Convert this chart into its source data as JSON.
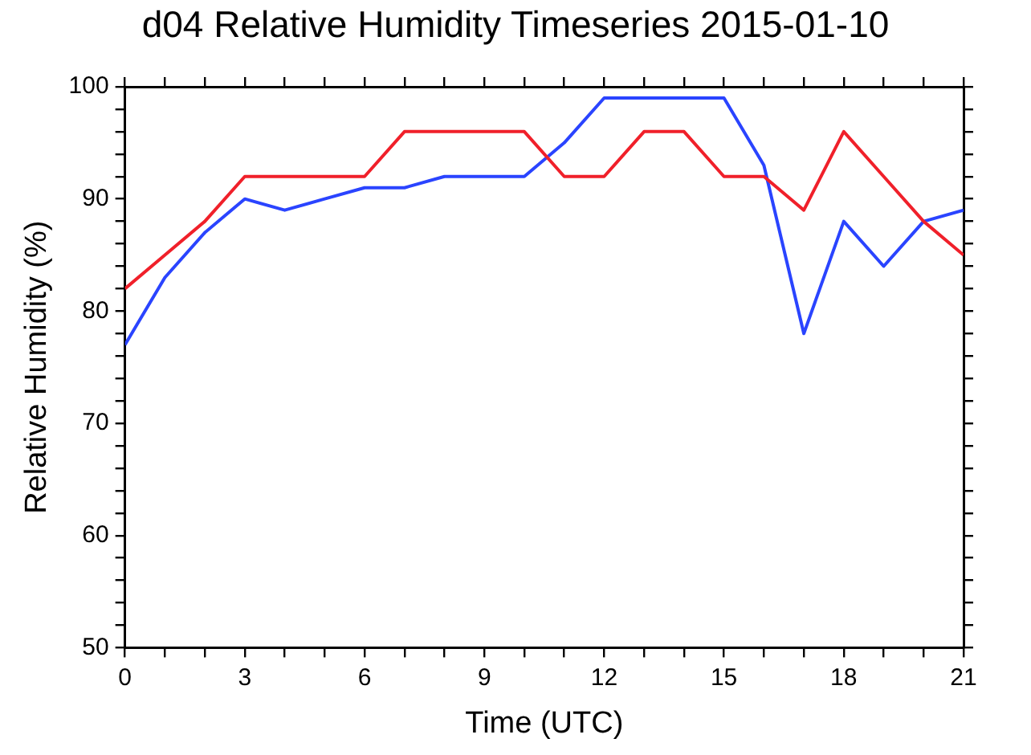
{
  "chart_data": {
    "type": "line",
    "title": "d04 Relative Humidity Timeseries 2015-01-10",
    "xlabel": "Time (UTC)",
    "ylabel": "Relative Humidity (%)",
    "x": [
      0,
      1,
      2,
      3,
      4,
      5,
      6,
      7,
      8,
      9,
      10,
      11,
      12,
      13,
      14,
      15,
      16,
      17,
      18,
      19,
      20,
      21
    ],
    "series": [
      {
        "color": "#f0202a",
        "values": [
          82,
          85,
          88,
          92,
          92,
          92,
          92,
          96,
          96,
          96,
          96,
          92,
          92,
          96,
          96,
          92,
          92,
          89,
          96,
          92,
          88,
          85
        ]
      },
      {
        "color": "#2a44ff",
        "values": [
          77,
          83,
          87,
          90,
          89,
          90,
          91,
          91,
          92,
          92,
          92,
          95,
          99,
          99,
          99,
          99,
          93,
          78,
          88,
          84,
          88,
          89
        ]
      }
    ],
    "xlim": [
      0,
      21
    ],
    "xticks": [
      0,
      {
        "value": 1,
        "label": null
      },
      {
        "value": 2,
        "label": null
      },
      3,
      {
        "value": 4,
        "label": null
      },
      {
        "value": 5,
        "label": null
      },
      6,
      {
        "value": 7,
        "label": null
      },
      {
        "value": 8,
        "label": null
      },
      9,
      {
        "value": 10,
        "label": null
      },
      {
        "value": 11,
        "label": null
      },
      12,
      {
        "value": 13,
        "label": null
      },
      {
        "value": 14,
        "label": null
      },
      15,
      {
        "value": 16,
        "label": null
      },
      {
        "value": 17,
        "label": null
      },
      18,
      {
        "value": 19,
        "label": null
      },
      {
        "value": 20,
        "label": null
      },
      21
    ],
    "ylim": [
      50,
      100
    ],
    "yticks": [
      50,
      {
        "value": 52,
        "label": null
      },
      {
        "value": 54,
        "label": null
      },
      {
        "value": 56,
        "label": null
      },
      {
        "value": 58,
        "label": null
      },
      60,
      {
        "value": 62,
        "label": null
      },
      {
        "value": 64,
        "label": null
      },
      {
        "value": 66,
        "label": null
      },
      {
        "value": 68,
        "label": null
      },
      70,
      {
        "value": 72,
        "label": null
      },
      {
        "value": 74,
        "label": null
      },
      {
        "value": 76,
        "label": null
      },
      {
        "value": 78,
        "label": null
      },
      80,
      {
        "value": 82,
        "label": null
      },
      {
        "value": 84,
        "label": null
      },
      {
        "value": 86,
        "label": null
      },
      {
        "value": 88,
        "label": null
      },
      90,
      {
        "value": 92,
        "label": null
      },
      {
        "value": 94,
        "label": null
      },
      {
        "value": 96,
        "label": null
      },
      {
        "value": 98,
        "label": null
      },
      100
    ],
    "grid": false,
    "legend": false,
    "marker": "none",
    "line_style": "solid"
  }
}
